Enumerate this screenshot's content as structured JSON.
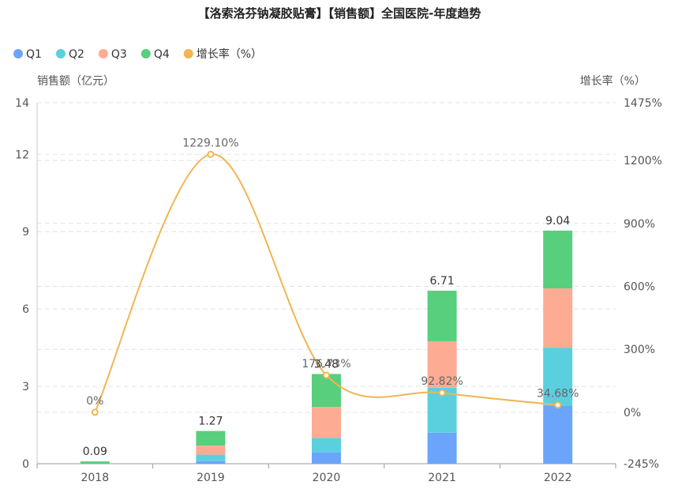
{
  "chart_data": {
    "type": "bar",
    "title": "【洛索洛芬钠凝胶贴膏】【销售额】全国医院-年度趋势",
    "categories": [
      "2018",
      "2019",
      "2020",
      "2021",
      "2022"
    ],
    "series": [
      {
        "name": "Q1",
        "type": "bar",
        "color": "#6aa5fb",
        "values": [
          0.0,
          0.1,
          0.45,
          1.2,
          2.25
        ]
      },
      {
        "name": "Q2",
        "type": "bar",
        "color": "#5ad0df",
        "values": [
          0.0,
          0.25,
          0.55,
          1.75,
          2.25
        ]
      },
      {
        "name": "Q3",
        "type": "bar",
        "color": "#fdab93",
        "values": [
          0.0,
          0.35,
          1.2,
          1.8,
          2.3
        ]
      },
      {
        "name": "Q4",
        "type": "bar",
        "color": "#58cf7d",
        "values": [
          0.09,
          0.57,
          1.28,
          1.96,
          2.24
        ]
      },
      {
        "name": "增长率（%）",
        "type": "line",
        "axis": "right",
        "color": "#f1b552",
        "values": [
          0,
          1229.1,
          176.73,
          92.82,
          34.68
        ],
        "labels": [
          "0%",
          "1229.10%",
          "176.73%",
          "92.82%",
          "34.68%"
        ]
      }
    ],
    "totals": [
      0.09,
      1.27,
      3.48,
      6.71,
      9.04
    ],
    "total_labels": [
      "0.09",
      "1.27",
      "3.48",
      "6.71",
      "9.04"
    ],
    "ylabel": "销售额（亿元）",
    "ylabel_right": "增长率（%）",
    "ylim": [
      0,
      14
    ],
    "yticks": [
      0,
      3,
      6,
      9,
      12,
      14
    ],
    "ylim_right": [
      -245,
      1475
    ],
    "yticks_right": [
      "-245%",
      "0%",
      "300%",
      "600%",
      "900%",
      "1200%",
      "1475%"
    ],
    "yticks_right_values": [
      -245,
      0,
      300,
      600,
      900,
      1200,
      1475
    ],
    "grid": true,
    "legend_position": "top-left"
  }
}
